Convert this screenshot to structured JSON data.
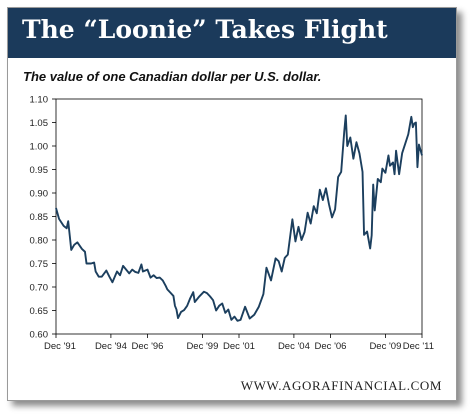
{
  "header": {
    "title": "The “Loonie” Takes Flight"
  },
  "footer": {
    "source": "WWW.AGORAFINANCIAL.COM"
  },
  "colors": {
    "banner": "#1b3a5b",
    "line": "#1c3f5e"
  },
  "chart_data": {
    "type": "line",
    "title": "The “Loonie” Takes Flight",
    "subtitle": "The value of one Canadian dollar per U.S. dollar.",
    "xlabel": "",
    "ylabel": "",
    "ylim": [
      0.6,
      1.1
    ],
    "xlim": [
      "1991-12",
      "2011-12"
    ],
    "grid": false,
    "legend": "none",
    "y_ticks": [
      "0.60",
      "0.65",
      "0.70",
      "0.75",
      "0.80",
      "0.85",
      "0.90",
      "0.95",
      "1.00",
      "1.05",
      "1.10"
    ],
    "x_ticks": [
      {
        "label": "Dec '91",
        "x": "1991-12"
      },
      {
        "label": "Dec '94",
        "x": "1994-12"
      },
      {
        "label": "Dec '96",
        "x": "1996-12"
      },
      {
        "label": "Dec '99",
        "x": "1999-12"
      },
      {
        "label": "Dec '01",
        "x": "2001-12"
      },
      {
        "label": "Dec '04",
        "x": "2004-12"
      },
      {
        "label": "Dec '06",
        "x": "2006-12"
      },
      {
        "label": "Dec '09",
        "x": "2009-12"
      },
      {
        "label": "Dec '11",
        "x": "2011-12"
      }
    ],
    "series": [
      {
        "name": "",
        "points": [
          [
            "1991-12",
            0.868
          ],
          [
            "1992-02",
            0.845
          ],
          [
            "1992-05",
            0.83
          ],
          [
            "1992-07",
            0.825
          ],
          [
            "1992-08",
            0.84
          ],
          [
            "1992-09",
            0.81
          ],
          [
            "1992-10",
            0.779
          ],
          [
            "1992-12",
            0.79
          ],
          [
            "1993-02",
            0.795
          ],
          [
            "1993-05",
            0.781
          ],
          [
            "1993-07",
            0.775
          ],
          [
            "1993-08",
            0.75
          ],
          [
            "1993-11",
            0.75
          ],
          [
            "1994-01",
            0.752
          ],
          [
            "1994-02",
            0.733
          ],
          [
            "1994-04",
            0.722
          ],
          [
            "1994-06",
            0.722
          ],
          [
            "1994-09",
            0.735
          ],
          [
            "1994-11",
            0.722
          ],
          [
            "1995-01",
            0.71
          ],
          [
            "1995-04",
            0.733
          ],
          [
            "1995-06",
            0.725
          ],
          [
            "1995-08",
            0.745
          ],
          [
            "1995-10",
            0.737
          ],
          [
            "1995-12",
            0.729
          ],
          [
            "1996-02",
            0.737
          ],
          [
            "1996-04",
            0.732
          ],
          [
            "1996-06",
            0.73
          ],
          [
            "1996-08",
            0.748
          ],
          [
            "1996-09",
            0.733
          ],
          [
            "1996-12",
            0.737
          ],
          [
            "1997-02",
            0.72
          ],
          [
            "1997-04",
            0.725
          ],
          [
            "1997-06",
            0.719
          ],
          [
            "1997-08",
            0.72
          ],
          [
            "1997-10",
            0.714
          ],
          [
            "1997-12",
            0.702
          ],
          [
            "1998-01",
            0.695
          ],
          [
            "1998-03",
            0.688
          ],
          [
            "1998-05",
            0.681
          ],
          [
            "1998-06",
            0.66
          ],
          [
            "1998-07",
            0.652
          ],
          [
            "1998-08",
            0.634
          ],
          [
            "1998-10",
            0.647
          ],
          [
            "1998-12",
            0.651
          ],
          [
            "1999-02",
            0.66
          ],
          [
            "1999-04",
            0.676
          ],
          [
            "1999-06",
            0.689
          ],
          [
            "1999-07",
            0.668
          ],
          [
            "1999-10",
            0.68
          ],
          [
            "2000-01",
            0.69
          ],
          [
            "2000-03",
            0.687
          ],
          [
            "2000-05",
            0.68
          ],
          [
            "2000-07",
            0.672
          ],
          [
            "2000-09",
            0.65
          ],
          [
            "2000-11",
            0.66
          ],
          [
            "2001-01",
            0.665
          ],
          [
            "2001-03",
            0.645
          ],
          [
            "2001-05",
            0.652
          ],
          [
            "2001-07",
            0.63
          ],
          [
            "2001-09",
            0.637
          ],
          [
            "2001-11",
            0.628
          ],
          [
            "2002-01",
            0.63
          ],
          [
            "2002-04",
            0.658
          ],
          [
            "2002-07",
            0.633
          ],
          [
            "2002-10",
            0.641
          ],
          [
            "2003-01",
            0.658
          ],
          [
            "2003-04",
            0.685
          ],
          [
            "2003-06",
            0.741
          ],
          [
            "2003-09",
            0.714
          ],
          [
            "2003-12",
            0.761
          ],
          [
            "2004-02",
            0.755
          ],
          [
            "2004-04",
            0.733
          ],
          [
            "2004-06",
            0.762
          ],
          [
            "2004-08",
            0.769
          ],
          [
            "2004-11",
            0.844
          ],
          [
            "2005-01",
            0.797
          ],
          [
            "2005-03",
            0.828
          ],
          [
            "2005-05",
            0.8
          ],
          [
            "2005-07",
            0.817
          ],
          [
            "2005-09",
            0.858
          ],
          [
            "2005-11",
            0.835
          ],
          [
            "2006-01",
            0.872
          ],
          [
            "2006-03",
            0.857
          ],
          [
            "2006-05",
            0.907
          ],
          [
            "2006-07",
            0.885
          ],
          [
            "2006-09",
            0.91
          ],
          [
            "2006-11",
            0.876
          ],
          [
            "2007-01",
            0.848
          ],
          [
            "2007-03",
            0.865
          ],
          [
            "2007-05",
            0.934
          ],
          [
            "2007-07",
            0.945
          ],
          [
            "2007-09",
            1.03
          ],
          [
            "2007-10",
            1.065
          ],
          [
            "2007-11",
            1.0
          ],
          [
            "2008-01",
            1.018
          ],
          [
            "2008-03",
            0.973
          ],
          [
            "2008-05",
            1.008
          ],
          [
            "2008-07",
            0.984
          ],
          [
            "2008-09",
            0.945
          ],
          [
            "2008-10",
            0.811
          ],
          [
            "2008-12",
            0.818
          ],
          [
            "2009-02",
            0.782
          ],
          [
            "2009-03",
            0.81
          ],
          [
            "2009-04",
            0.918
          ],
          [
            "2009-05",
            0.863
          ],
          [
            "2009-07",
            0.93
          ],
          [
            "2009-09",
            0.923
          ],
          [
            "2009-10",
            0.952
          ],
          [
            "2009-12",
            0.943
          ],
          [
            "2010-02",
            0.98
          ],
          [
            "2010-03",
            0.958
          ],
          [
            "2010-05",
            0.965
          ],
          [
            "2010-06",
            0.94
          ],
          [
            "2010-07",
            0.99
          ],
          [
            "2010-09",
            0.94
          ],
          [
            "2010-11",
            0.985
          ],
          [
            "2011-01",
            1.005
          ],
          [
            "2011-03",
            1.025
          ],
          [
            "2011-05",
            1.062
          ],
          [
            "2011-06",
            1.04
          ],
          [
            "2011-07",
            1.048
          ],
          [
            "2011-08",
            1.05
          ],
          [
            "2011-09",
            0.955
          ],
          [
            "2011-10",
            1.003
          ],
          [
            "2011-12",
            0.98
          ]
        ]
      }
    ]
  }
}
